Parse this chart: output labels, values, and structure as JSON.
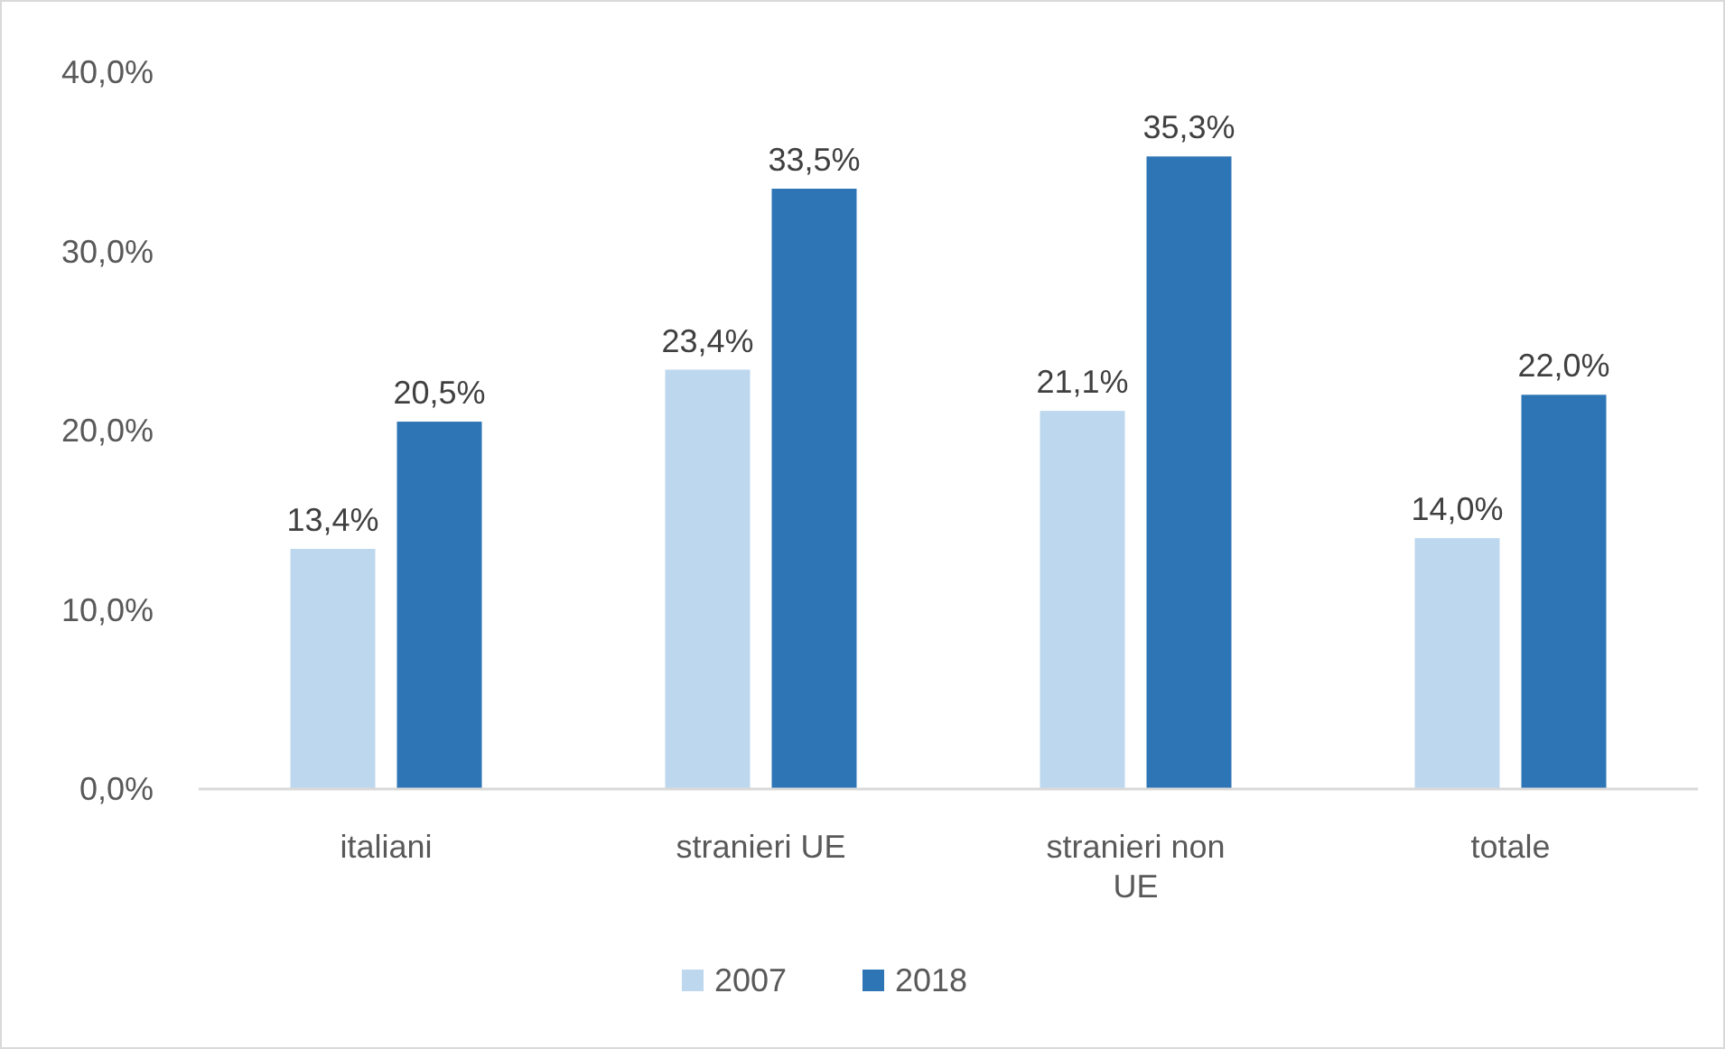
{
  "chart_data": {
    "type": "bar",
    "categories": [
      "italiani",
      "stranieri UE",
      "stranieri non UE",
      "totale"
    ],
    "series": [
      {
        "name": "2007",
        "color": "#bdd7ee",
        "values": [
          13.4,
          23.4,
          21.1,
          14.0
        ],
        "value_labels": [
          "13,4%",
          "23,4%",
          "21,1%",
          "14,0%"
        ]
      },
      {
        "name": "2018",
        "color": "#2e75b6",
        "values": [
          20.5,
          33.5,
          35.3,
          22.0
        ],
        "value_labels": [
          "20,5%",
          "33,5%",
          "35,3%",
          "22,0%"
        ]
      }
    ],
    "ylim": [
      0,
      40
    ],
    "yticks": [
      {
        "value": 0,
        "label": "0,0%"
      },
      {
        "value": 10,
        "label": "10,0%"
      },
      {
        "value": 20,
        "label": "20,0%"
      },
      {
        "value": 30,
        "label": "30,0%"
      },
      {
        "value": 40,
        "label": "40,0%"
      }
    ],
    "legend": "bottom"
  }
}
